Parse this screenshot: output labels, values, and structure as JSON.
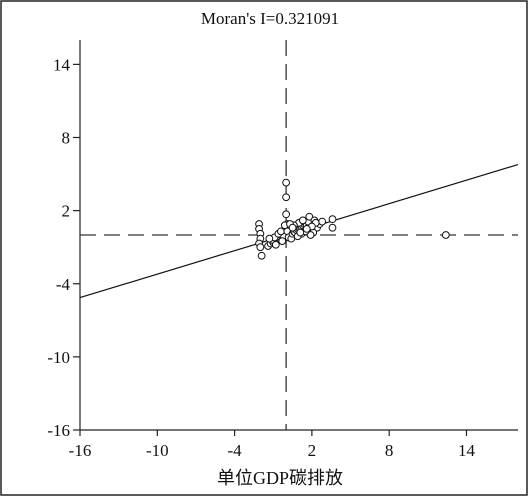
{
  "chart_data": {
    "type": "scatter",
    "title": "Moran's I=0.321091",
    "xlabel": "单位GDP碳排放",
    "ylabel": "",
    "xlim": [
      -16,
      18
    ],
    "ylim": [
      -16,
      16
    ],
    "xticks": [
      "-16",
      "-10",
      "-4",
      "2",
      "8",
      "14"
    ],
    "yticks": [
      "14",
      "8",
      "2",
      "-4",
      "-10",
      "-16"
    ],
    "xtick_values": [
      -16,
      -10,
      -4,
      2,
      8,
      14
    ],
    "ytick_values": [
      14,
      8,
      2,
      -4,
      -10,
      -16
    ],
    "grid": false,
    "mean_lines": {
      "x": 0,
      "y": 0
    },
    "regression": {
      "slope": 0.321091,
      "intercept": 0
    },
    "points": [
      [
        -2.1,
        0.9
      ],
      [
        -2.1,
        0.5
      ],
      [
        -2.0,
        0.1
      ],
      [
        -2.0,
        -0.3
      ],
      [
        -2.1,
        -0.7
      ],
      [
        -2.0,
        -1.0
      ],
      [
        -1.9,
        -1.7
      ],
      [
        -1.4,
        -0.9
      ],
      [
        -1.2,
        -0.7
      ],
      [
        -1.0,
        -0.6
      ],
      [
        -0.9,
        -0.5
      ],
      [
        -0.8,
        -0.4
      ],
      [
        -0.7,
        -0.3
      ],
      [
        -0.6,
        -0.2
      ],
      [
        -0.5,
        -0.1
      ],
      [
        -0.4,
        0.0
      ],
      [
        -0.3,
        0.1
      ],
      [
        -0.2,
        -0.1
      ],
      [
        -1.1,
        -0.4
      ],
      [
        -0.9,
        -0.2
      ],
      [
        -0.6,
        0.1
      ],
      [
        -0.4,
        0.3
      ],
      [
        -0.8,
        -0.8
      ],
      [
        -1.3,
        -0.3
      ],
      [
        0.0,
        4.3
      ],
      [
        0.0,
        3.1
      ],
      [
        0.0,
        1.7
      ],
      [
        0.1,
        0.9
      ],
      [
        0.2,
        0.5
      ],
      [
        0.3,
        0.2
      ],
      [
        0.0,
        0.6
      ],
      [
        0.1,
        0.3
      ],
      [
        -0.1,
        0.8
      ],
      [
        0.2,
        -0.2
      ],
      [
        0.4,
        -0.3
      ],
      [
        0.5,
        0.1
      ],
      [
        0.6,
        0.3
      ],
      [
        0.7,
        0.2
      ],
      [
        0.8,
        0.4
      ],
      [
        0.9,
        0.5
      ],
      [
        1.0,
        0.6
      ],
      [
        1.1,
        0.5
      ],
      [
        1.2,
        0.7
      ],
      [
        1.3,
        0.8
      ],
      [
        1.4,
        0.9
      ],
      [
        1.5,
        1.0
      ],
      [
        1.6,
        0.8
      ],
      [
        1.7,
        1.1
      ],
      [
        1.0,
        1.0
      ],
      [
        0.6,
        0.8
      ],
      [
        1.8,
        1.5
      ],
      [
        2.2,
        1.2
      ],
      [
        2.4,
        0.6
      ],
      [
        2.6,
        0.9
      ],
      [
        2.1,
        0.2
      ],
      [
        1.9,
        0.0
      ],
      [
        2.3,
        1.0
      ],
      [
        3.6,
        1.3
      ],
      [
        3.6,
        0.6
      ],
      [
        1.2,
        0.1
      ],
      [
        1.5,
        0.3
      ],
      [
        0.9,
        -0.1
      ],
      [
        1.3,
        1.2
      ],
      [
        2.0,
        0.7
      ],
      [
        0.3,
        0.9
      ],
      [
        0.5,
        0.6
      ],
      [
        -0.3,
        -0.5
      ],
      [
        1.1,
        0.2
      ],
      [
        1.6,
        0.5
      ],
      [
        2.8,
        1.1
      ],
      [
        12.4,
        0.0
      ]
    ]
  }
}
